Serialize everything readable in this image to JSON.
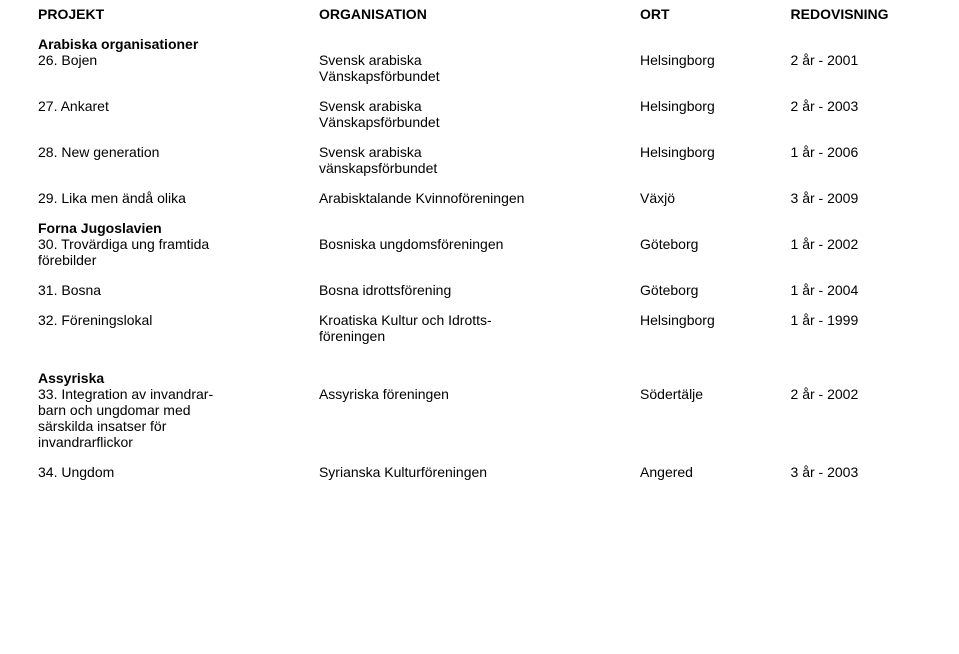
{
  "header": {
    "projekt": "PROJEKT",
    "organisation": "ORGANISATION",
    "ort": "ORT",
    "redovisning": "REDOVISNING"
  },
  "sections": {
    "arabiska": {
      "title": "Arabiska organisationer",
      "r26": {
        "proj": "26. Bojen",
        "org1": "Svensk arabiska",
        "org2": "Vänskapsförbundet",
        "ort": "Helsingborg",
        "red": "2 år - 2001"
      },
      "r27": {
        "proj": "27. Ankaret",
        "org1": "Svensk arabiska",
        "org2": "Vänskapsförbundet",
        "ort": "Helsingborg",
        "red": "2 år - 2003"
      },
      "r28": {
        "proj": "28. New generation",
        "org1": "Svensk arabiska",
        "org2": "vänskapsförbundet",
        "ort": "Helsingborg",
        "red": "1 år - 2006"
      },
      "r29": {
        "proj": "29. Lika men ändå olika",
        "org": "Arabisktalande Kvinnoföreningen",
        "ort": "Växjö",
        "red": "3 år - 2009"
      }
    },
    "forna": {
      "title": "Forna Jugoslavien",
      "r30": {
        "proj1": "30. Trovärdiga ung framtida",
        "proj2": "förebilder",
        "org": "Bosniska ungdomsföreningen",
        "ort": "Göteborg",
        "red": "1 år - 2002"
      },
      "r31": {
        "proj": "31. Bosna",
        "org": "Bosna idrottsförening",
        "ort": "Göteborg",
        "red": "1 år - 2004"
      },
      "r32": {
        "proj": "32. Föreningslokal",
        "org1": "Kroatiska Kultur och Idrotts-",
        "org2": "föreningen",
        "ort": "Helsingborg",
        "red": "1 år - 1999"
      }
    },
    "assyriska": {
      "title": "Assyriska",
      "r33": {
        "proj1": "33. Integration av invandrar-",
        "proj2": "barn och ungdomar med",
        "proj3": "särskilda insatser för",
        "proj4": "invandrarflickor",
        "org": "Assyriska föreningen",
        "ort": "Södertälje",
        "red": "2 år - 2002"
      },
      "r34": {
        "proj": "34. Ungdom",
        "org": "Syrianska Kulturföreningen",
        "ort": "Angered",
        "red": "3 år - 2003"
      }
    }
  }
}
